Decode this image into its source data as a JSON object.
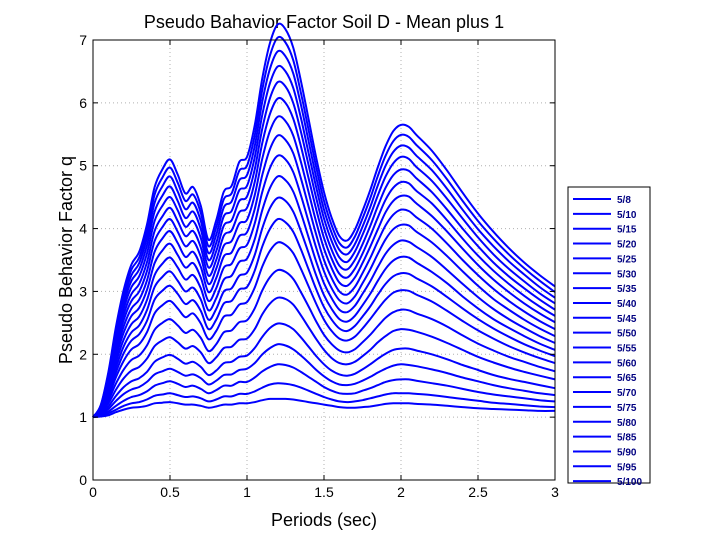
{
  "chart_data": {
    "type": "line",
    "title": "Pseudo Bahavior Factor Soil D - Mean plus 1",
    "xlabel": "Periods (sec)",
    "ylabel": "Pseudo Behavior Factor q",
    "xlim": [
      0,
      3
    ],
    "ylim": [
      0,
      7
    ],
    "xticks": [
      0,
      0.5,
      1,
      1.5,
      2,
      2.5,
      3
    ],
    "xtick_labels": [
      "0",
      "0.5",
      "1",
      "1.5",
      "2",
      "2.5",
      "3"
    ],
    "yticks": [
      0,
      1,
      2,
      3,
      4,
      5,
      6,
      7
    ],
    "ytick_labels": [
      "0",
      "1",
      "2",
      "3",
      "4",
      "5",
      "6",
      "7"
    ],
    "grid": true,
    "legend_position": "right",
    "line_color": "#0000ff",
    "x": [
      0,
      0.05,
      0.1,
      0.15,
      0.2,
      0.25,
      0.3,
      0.35,
      0.4,
      0.45,
      0.5,
      0.55,
      0.6,
      0.65,
      0.7,
      0.75,
      0.8,
      0.85,
      0.9,
      0.95,
      1.0,
      1.05,
      1.1,
      1.15,
      1.2,
      1.25,
      1.3,
      1.35,
      1.4,
      1.45,
      1.5,
      1.55,
      1.6,
      1.65,
      1.7,
      1.75,
      1.8,
      1.85,
      1.9,
      1.95,
      2.0,
      2.05,
      2.1,
      2.2,
      2.3,
      2.4,
      2.5,
      2.6,
      2.7,
      2.8,
      2.9,
      3.0
    ],
    "series": [
      {
        "name": "5/8",
        "values": [
          1.0,
          1.01,
          1.03,
          1.08,
          1.12,
          1.15,
          1.16,
          1.18,
          1.22,
          1.23,
          1.24,
          1.22,
          1.2,
          1.2,
          1.18,
          1.15,
          1.17,
          1.2,
          1.2,
          1.22,
          1.22,
          1.24,
          1.27,
          1.29,
          1.29,
          1.29,
          1.28,
          1.26,
          1.24,
          1.22,
          1.2,
          1.18,
          1.16,
          1.15,
          1.15,
          1.16,
          1.17,
          1.19,
          1.21,
          1.22,
          1.22,
          1.22,
          1.21,
          1.2,
          1.18,
          1.16,
          1.14,
          1.13,
          1.12,
          1.11,
          1.1,
          1.1
        ]
      },
      {
        "name": "5/10",
        "values": [
          1.0,
          1.02,
          1.06,
          1.12,
          1.18,
          1.22,
          1.24,
          1.28,
          1.34,
          1.36,
          1.38,
          1.35,
          1.32,
          1.33,
          1.3,
          1.25,
          1.28,
          1.33,
          1.33,
          1.37,
          1.37,
          1.41,
          1.47,
          1.52,
          1.54,
          1.53,
          1.51,
          1.47,
          1.42,
          1.37,
          1.32,
          1.28,
          1.25,
          1.24,
          1.25,
          1.27,
          1.3,
          1.33,
          1.36,
          1.38,
          1.38,
          1.38,
          1.37,
          1.35,
          1.32,
          1.29,
          1.26,
          1.23,
          1.21,
          1.19,
          1.17,
          1.16
        ]
      },
      {
        "name": "5/15",
        "values": [
          1.0,
          1.03,
          1.09,
          1.18,
          1.26,
          1.32,
          1.35,
          1.41,
          1.5,
          1.54,
          1.57,
          1.53,
          1.48,
          1.5,
          1.45,
          1.38,
          1.43,
          1.5,
          1.5,
          1.56,
          1.56,
          1.63,
          1.73,
          1.8,
          1.84,
          1.83,
          1.79,
          1.72,
          1.64,
          1.56,
          1.48,
          1.42,
          1.38,
          1.37,
          1.38,
          1.42,
          1.46,
          1.51,
          1.56,
          1.59,
          1.6,
          1.6,
          1.58,
          1.54,
          1.5,
          1.45,
          1.4,
          1.36,
          1.33,
          1.3,
          1.27,
          1.25
        ]
      },
      {
        "name": "5/20",
        "values": [
          1.0,
          1.04,
          1.13,
          1.26,
          1.37,
          1.44,
          1.48,
          1.56,
          1.68,
          1.73,
          1.77,
          1.72,
          1.66,
          1.68,
          1.62,
          1.52,
          1.58,
          1.67,
          1.68,
          1.75,
          1.77,
          1.86,
          2.0,
          2.1,
          2.16,
          2.14,
          2.08,
          1.98,
          1.87,
          1.75,
          1.65,
          1.57,
          1.52,
          1.51,
          1.53,
          1.58,
          1.64,
          1.71,
          1.77,
          1.82,
          1.84,
          1.83,
          1.81,
          1.76,
          1.7,
          1.63,
          1.57,
          1.51,
          1.46,
          1.42,
          1.38,
          1.35
        ]
      },
      {
        "name": "5/25",
        "values": [
          1.0,
          1.05,
          1.17,
          1.34,
          1.48,
          1.57,
          1.62,
          1.72,
          1.88,
          1.95,
          1.99,
          1.93,
          1.85,
          1.88,
          1.8,
          1.67,
          1.74,
          1.86,
          1.88,
          1.96,
          1.98,
          2.1,
          2.28,
          2.42,
          2.49,
          2.47,
          2.4,
          2.27,
          2.12,
          1.97,
          1.84,
          1.74,
          1.68,
          1.66,
          1.69,
          1.76,
          1.84,
          1.93,
          2.01,
          2.07,
          2.09,
          2.09,
          2.06,
          2.0,
          1.92,
          1.83,
          1.75,
          1.67,
          1.61,
          1.56,
          1.51,
          1.46
        ]
      },
      {
        "name": "5/30",
        "values": [
          1.0,
          1.07,
          1.22,
          1.44,
          1.62,
          1.74,
          1.8,
          1.93,
          2.13,
          2.22,
          2.27,
          2.19,
          2.09,
          2.13,
          2.03,
          1.86,
          1.95,
          2.1,
          2.12,
          2.23,
          2.25,
          2.4,
          2.64,
          2.81,
          2.9,
          2.88,
          2.79,
          2.62,
          2.43,
          2.24,
          2.07,
          1.94,
          1.86,
          1.84,
          1.88,
          1.97,
          2.07,
          2.19,
          2.29,
          2.37,
          2.4,
          2.39,
          2.36,
          2.28,
          2.18,
          2.07,
          1.96,
          1.87,
          1.79,
          1.72,
          1.66,
          1.6
        ]
      },
      {
        "name": "5/35",
        "values": [
          1.0,
          1.08,
          1.27,
          1.54,
          1.76,
          1.91,
          1.98,
          2.14,
          2.39,
          2.5,
          2.56,
          2.46,
          2.34,
          2.39,
          2.26,
          2.05,
          2.16,
          2.35,
          2.38,
          2.51,
          2.54,
          2.73,
          3.02,
          3.23,
          3.34,
          3.31,
          3.2,
          2.99,
          2.76,
          2.52,
          2.31,
          2.16,
          2.06,
          2.03,
          2.08,
          2.19,
          2.31,
          2.45,
          2.58,
          2.67,
          2.71,
          2.7,
          2.65,
          2.56,
          2.44,
          2.3,
          2.17,
          2.06,
          1.96,
          1.88,
          1.8,
          1.73
        ]
      },
      {
        "name": "5/40",
        "values": [
          1.0,
          1.09,
          1.32,
          1.64,
          1.9,
          2.08,
          2.16,
          2.35,
          2.65,
          2.78,
          2.85,
          2.73,
          2.59,
          2.65,
          2.49,
          2.24,
          2.37,
          2.6,
          2.63,
          2.79,
          2.83,
          3.06,
          3.4,
          3.65,
          3.78,
          3.74,
          3.61,
          3.36,
          3.08,
          2.8,
          2.55,
          2.37,
          2.25,
          2.22,
          2.28,
          2.41,
          2.56,
          2.72,
          2.87,
          2.98,
          3.02,
          3.01,
          2.95,
          2.84,
          2.69,
          2.53,
          2.38,
          2.25,
          2.13,
          2.03,
          1.94,
          1.86
        ]
      },
      {
        "name": "5/45",
        "values": [
          1.0,
          1.1,
          1.36,
          1.72,
          2.02,
          2.22,
          2.32,
          2.53,
          2.87,
          3.01,
          3.09,
          2.96,
          2.8,
          2.86,
          2.69,
          2.4,
          2.55,
          2.81,
          2.85,
          3.03,
          3.07,
          3.33,
          3.72,
          4.0,
          4.15,
          4.1,
          3.95,
          3.67,
          3.35,
          3.03,
          2.75,
          2.55,
          2.41,
          2.37,
          2.45,
          2.6,
          2.76,
          2.95,
          3.12,
          3.24,
          3.29,
          3.28,
          3.21,
          3.08,
          2.91,
          2.73,
          2.56,
          2.41,
          2.28,
          2.16,
          2.06,
          1.97
        ]
      },
      {
        "name": "5/50",
        "values": [
          1.0,
          1.11,
          1.4,
          1.8,
          2.13,
          2.35,
          2.46,
          2.7,
          3.07,
          3.23,
          3.32,
          3.17,
          3.0,
          3.06,
          2.87,
          2.55,
          2.72,
          3.0,
          3.05,
          3.25,
          3.3,
          3.58,
          4.01,
          4.33,
          4.49,
          4.44,
          4.27,
          3.96,
          3.61,
          3.25,
          2.94,
          2.72,
          2.56,
          2.52,
          2.61,
          2.78,
          2.96,
          3.17,
          3.36,
          3.49,
          3.55,
          3.54,
          3.46,
          3.31,
          3.13,
          2.92,
          2.73,
          2.56,
          2.42,
          2.29,
          2.17,
          2.07
        ]
      },
      {
        "name": "5/55",
        "values": [
          1.0,
          1.12,
          1.44,
          1.88,
          2.24,
          2.48,
          2.6,
          2.86,
          3.26,
          3.44,
          3.54,
          3.38,
          3.19,
          3.26,
          3.05,
          2.7,
          2.89,
          3.19,
          3.25,
          3.47,
          3.52,
          3.83,
          4.3,
          4.65,
          4.83,
          4.77,
          4.59,
          4.25,
          3.86,
          3.47,
          3.13,
          2.89,
          2.71,
          2.67,
          2.77,
          2.96,
          3.16,
          3.39,
          3.6,
          3.74,
          3.81,
          3.79,
          3.71,
          3.55,
          3.34,
          3.12,
          2.91,
          2.72,
          2.56,
          2.42,
          2.29,
          2.18
        ]
      },
      {
        "name": "5/60",
        "values": [
          1.0,
          1.13,
          1.48,
          1.96,
          2.35,
          2.61,
          2.74,
          3.02,
          3.45,
          3.65,
          3.76,
          3.58,
          3.38,
          3.45,
          3.22,
          2.85,
          3.05,
          3.38,
          3.44,
          3.68,
          3.74,
          4.08,
          4.59,
          4.97,
          5.16,
          5.1,
          4.9,
          4.53,
          4.11,
          3.69,
          3.32,
          3.05,
          2.86,
          2.81,
          2.92,
          3.13,
          3.35,
          3.6,
          3.83,
          3.99,
          4.06,
          4.05,
          3.95,
          3.78,
          3.56,
          3.32,
          3.09,
          2.88,
          2.71,
          2.55,
          2.41,
          2.29
        ]
      },
      {
        "name": "5/65",
        "values": [
          1.0,
          1.13,
          1.51,
          2.03,
          2.45,
          2.73,
          2.87,
          3.17,
          3.63,
          3.84,
          3.96,
          3.77,
          3.55,
          3.63,
          3.39,
          2.99,
          3.21,
          3.56,
          3.62,
          3.88,
          3.94,
          4.31,
          4.86,
          5.27,
          5.48,
          5.41,
          5.2,
          4.8,
          4.35,
          3.9,
          3.5,
          3.21,
          3.0,
          2.95,
          3.07,
          3.29,
          3.53,
          3.8,
          4.05,
          4.22,
          4.3,
          4.28,
          4.18,
          4.0,
          3.76,
          3.5,
          3.26,
          3.04,
          2.85,
          2.68,
          2.53,
          2.4
        ]
      },
      {
        "name": "5/70",
        "values": [
          1.0,
          1.14,
          1.55,
          2.1,
          2.55,
          2.85,
          3.0,
          3.32,
          3.8,
          4.02,
          4.15,
          3.95,
          3.72,
          3.8,
          3.55,
          3.12,
          3.36,
          3.73,
          3.8,
          4.08,
          4.14,
          4.53,
          5.12,
          5.56,
          5.78,
          5.71,
          5.48,
          5.06,
          4.58,
          4.1,
          3.68,
          3.37,
          3.14,
          3.09,
          3.22,
          3.45,
          3.71,
          3.99,
          4.26,
          4.44,
          4.52,
          4.51,
          4.4,
          4.2,
          3.95,
          3.68,
          3.42,
          3.19,
          2.99,
          2.81,
          2.65,
          2.51
        ]
      },
      {
        "name": "5/75",
        "values": [
          1.0,
          1.15,
          1.58,
          2.17,
          2.64,
          2.96,
          3.12,
          3.46,
          3.96,
          4.19,
          4.33,
          4.12,
          3.88,
          3.96,
          3.7,
          3.25,
          3.5,
          3.89,
          3.97,
          4.26,
          4.33,
          4.74,
          5.37,
          5.83,
          6.07,
          6.0,
          5.75,
          5.31,
          4.8,
          4.3,
          3.85,
          3.52,
          3.28,
          3.22,
          3.36,
          3.6,
          3.88,
          4.18,
          4.46,
          4.65,
          4.74,
          4.72,
          4.6,
          4.4,
          4.13,
          3.84,
          3.57,
          3.33,
          3.12,
          2.93,
          2.76,
          2.61
        ]
      },
      {
        "name": "5/80",
        "values": [
          1.0,
          1.16,
          1.61,
          2.23,
          2.73,
          3.07,
          3.24,
          3.6,
          4.12,
          4.36,
          4.5,
          4.29,
          4.03,
          4.12,
          3.85,
          3.38,
          3.64,
          4.05,
          4.13,
          4.44,
          4.51,
          4.94,
          5.6,
          6.08,
          6.33,
          6.26,
          6.0,
          5.54,
          5.01,
          4.48,
          4.01,
          3.66,
          3.41,
          3.35,
          3.5,
          3.75,
          4.04,
          4.36,
          4.65,
          4.85,
          4.94,
          4.92,
          4.8,
          4.58,
          4.3,
          4.0,
          3.72,
          3.46,
          3.24,
          3.05,
          2.87,
          2.71
        ]
      },
      {
        "name": "5/85",
        "values": [
          1.0,
          1.17,
          1.64,
          2.29,
          2.81,
          3.17,
          3.35,
          3.73,
          4.27,
          4.52,
          4.67,
          4.44,
          4.17,
          4.27,
          3.99,
          3.5,
          3.77,
          4.2,
          4.28,
          4.61,
          4.68,
          5.13,
          5.82,
          6.32,
          6.58,
          6.5,
          6.24,
          5.76,
          5.2,
          4.65,
          4.16,
          3.8,
          3.54,
          3.47,
          3.63,
          3.9,
          4.2,
          4.53,
          4.83,
          5.04,
          5.14,
          5.11,
          4.98,
          4.76,
          4.47,
          4.16,
          3.86,
          3.59,
          3.36,
          3.16,
          2.97,
          2.81
        ]
      },
      {
        "name": "5/90",
        "values": [
          1.0,
          1.18,
          1.67,
          2.35,
          2.89,
          3.26,
          3.45,
          3.85,
          4.41,
          4.67,
          4.83,
          4.59,
          4.31,
          4.41,
          4.12,
          3.61,
          3.9,
          4.34,
          4.43,
          4.77,
          4.85,
          5.31,
          6.03,
          6.55,
          6.82,
          6.74,
          6.47,
          5.97,
          5.39,
          4.81,
          4.3,
          3.93,
          3.66,
          3.59,
          3.75,
          4.03,
          4.34,
          4.69,
          5.0,
          5.22,
          5.32,
          5.29,
          5.16,
          4.93,
          4.63,
          4.3,
          3.99,
          3.72,
          3.48,
          3.27,
          3.07,
          2.9
        ]
      },
      {
        "name": "5/95",
        "values": [
          1.0,
          1.18,
          1.69,
          2.4,
          2.96,
          3.35,
          3.54,
          3.96,
          4.54,
          4.81,
          4.97,
          4.73,
          4.44,
          4.54,
          4.25,
          3.72,
          4.02,
          4.47,
          4.56,
          4.92,
          5.0,
          5.48,
          6.22,
          6.76,
          7.04,
          6.96,
          6.68,
          6.16,
          5.57,
          4.97,
          4.44,
          4.05,
          3.77,
          3.7,
          3.87,
          4.16,
          4.48,
          4.84,
          5.16,
          5.39,
          5.49,
          5.46,
          5.33,
          5.09,
          4.78,
          4.44,
          4.12,
          3.84,
          3.59,
          3.37,
          3.17,
          2.99
        ]
      },
      {
        "name": "5/100",
        "values": [
          1.0,
          1.19,
          1.72,
          2.45,
          3.03,
          3.43,
          3.63,
          4.06,
          4.66,
          4.94,
          5.1,
          4.86,
          4.56,
          4.66,
          4.36,
          3.82,
          4.13,
          4.59,
          4.68,
          5.06,
          5.14,
          5.64,
          6.4,
          6.96,
          7.25,
          7.17,
          6.88,
          6.35,
          5.74,
          5.12,
          4.58,
          4.17,
          3.88,
          3.81,
          3.98,
          4.28,
          4.61,
          4.98,
          5.31,
          5.55,
          5.65,
          5.62,
          5.49,
          5.24,
          4.92,
          4.57,
          4.24,
          3.95,
          3.69,
          3.46,
          3.26,
          3.08
        ]
      }
    ]
  }
}
